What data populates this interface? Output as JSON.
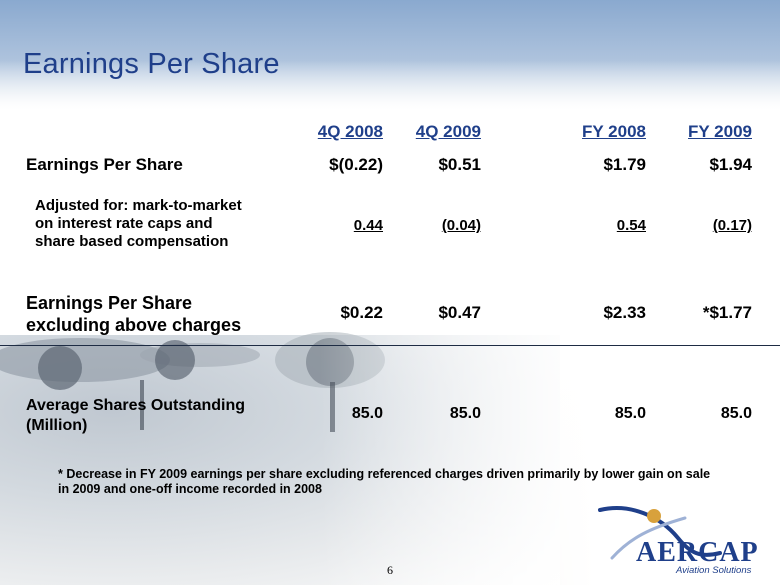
{
  "slide": {
    "title": "Earnings Per Share",
    "page_number": "6"
  },
  "table": {
    "columns": [
      "4Q 2008",
      "4Q 2009",
      "FY 2008",
      "FY 2009"
    ],
    "rows": [
      {
        "label": "Earnings Per Share",
        "values": [
          "$(0.22)",
          "$0.51",
          "$1.79",
          "$1.94"
        ]
      },
      {
        "label_lines": [
          "Adjusted for: mark-to-market",
          "on interest rate caps and",
          "share based compensation"
        ],
        "values": [
          "0.44",
          "(0.04)",
          "0.54",
          "(0.17)"
        ],
        "underlined": true
      },
      {
        "label_lines": [
          "Earnings Per Share",
          "excluding above charges"
        ],
        "values": [
          "$0.22",
          "$0.47",
          "$2.33",
          "*$1.77"
        ]
      },
      {
        "label_lines": [
          "Average Shares Outstanding",
          "(Million)"
        ],
        "values": [
          "85.0",
          "85.0",
          "85.0",
          "85.0"
        ]
      }
    ]
  },
  "footnote_lines": [
    "* Decrease in FY 2009 earnings per share excluding referenced charges driven primarily by lower gain on sale",
    "in 2009 and one-off income recorded in 2008"
  ],
  "logo": {
    "name": "AERCAP",
    "tagline": "Aviation Solutions",
    "colors": {
      "primary": "#1f3f8a",
      "accent": "#d8a13c"
    }
  },
  "colors": {
    "title": "#1f3f8a",
    "text": "#000000",
    "divider": "#1e2c44"
  }
}
